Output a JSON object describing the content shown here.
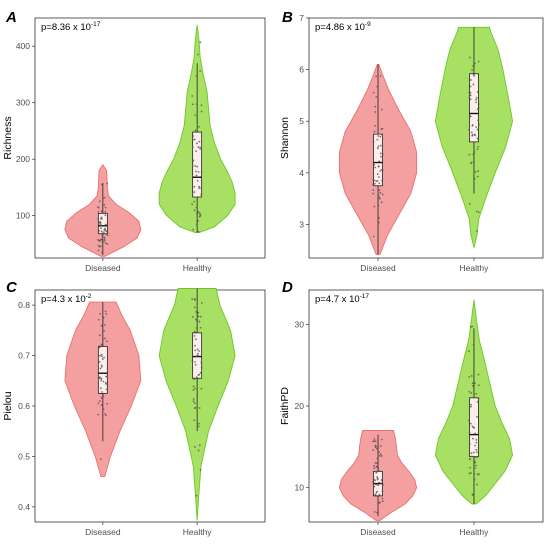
{
  "groups": [
    "Diseased",
    "Healthy"
  ],
  "colors": {
    "diseased_fill": "#f4a0a0",
    "diseased_line": "#e8706e",
    "healthy_fill": "#a8e063",
    "healthy_line": "#6cc628",
    "box_fill": "#fdeeee",
    "point": "#555555"
  },
  "chart_data": [
    {
      "letter": "A",
      "type": "violin",
      "ylabel": "Richness",
      "pvalue": {
        "base": "p=8.36 x 10",
        "exp": "-17"
      },
      "categories": [
        "Diseased",
        "Healthy"
      ],
      "ylim": [
        25,
        450
      ],
      "yticks": [
        100,
        200,
        300,
        400
      ],
      "grid": false,
      "series": [
        {
          "name": "Diseased",
          "min": 28,
          "max": 190,
          "q1": 68,
          "median": 82,
          "q3": 104,
          "whisker_low": 30,
          "whisker_high": 158,
          "density": [
            [
              28,
              0.05
            ],
            [
              45,
              0.55
            ],
            [
              60,
              0.9
            ],
            [
              75,
              1.0
            ],
            [
              90,
              0.95
            ],
            [
              105,
              0.7
            ],
            [
              120,
              0.35
            ],
            [
              135,
              0.15
            ],
            [
              150,
              0.12
            ],
            [
              165,
              0.11
            ],
            [
              180,
              0.1
            ],
            [
              190,
              0.0
            ]
          ]
        },
        {
          "name": "Healthy",
          "min": 70,
          "max": 438,
          "q1": 133,
          "median": 168,
          "q3": 248,
          "whisker_low": 70,
          "whisker_high": 370,
          "density": [
            [
              70,
              0.05
            ],
            [
              80,
              0.45
            ],
            [
              100,
              0.8
            ],
            [
              120,
              1.0
            ],
            [
              140,
              1.0
            ],
            [
              160,
              0.92
            ],
            [
              180,
              0.78
            ],
            [
              200,
              0.62
            ],
            [
              230,
              0.45
            ],
            [
              260,
              0.34
            ],
            [
              290,
              0.3
            ],
            [
              320,
              0.26
            ],
            [
              350,
              0.16
            ],
            [
              380,
              0.08
            ],
            [
              410,
              0.05
            ],
            [
              438,
              0.0
            ]
          ]
        }
      ]
    },
    {
      "letter": "B",
      "type": "violin",
      "ylabel": "Shannon",
      "pvalue": {
        "base": "p=4.86 x 10",
        "exp": "-9"
      },
      "categories": [
        "Diseased",
        "Healthy"
      ],
      "ylim": [
        2.35,
        7.0
      ],
      "yticks": [
        3,
        4,
        5,
        6,
        7
      ],
      "grid": false,
      "series": [
        {
          "name": "Diseased",
          "min": 2.42,
          "max": 6.1,
          "q1": 3.75,
          "median": 4.2,
          "q3": 4.75,
          "whisker_low": 2.42,
          "whisker_high": 6.1,
          "density": [
            [
              2.42,
              0.05
            ],
            [
              2.8,
              0.25
            ],
            [
              3.2,
              0.55
            ],
            [
              3.6,
              0.85
            ],
            [
              4.0,
              1.0
            ],
            [
              4.4,
              1.0
            ],
            [
              4.8,
              0.85
            ],
            [
              5.2,
              0.55
            ],
            [
              5.6,
              0.28
            ],
            [
              5.9,
              0.12
            ],
            [
              6.1,
              0.02
            ]
          ]
        },
        {
          "name": "Healthy",
          "min": 2.55,
          "max": 6.82,
          "q1": 4.6,
          "median": 5.15,
          "q3": 5.92,
          "whisker_low": 3.6,
          "whisker_high": 6.82,
          "density": [
            [
              2.55,
              0.0
            ],
            [
              2.8,
              0.08
            ],
            [
              3.1,
              0.12
            ],
            [
              3.5,
              0.3
            ],
            [
              4.0,
              0.55
            ],
            [
              4.5,
              0.82
            ],
            [
              5.0,
              1.0
            ],
            [
              5.5,
              0.88
            ],
            [
              6.0,
              0.75
            ],
            [
              6.4,
              0.62
            ],
            [
              6.7,
              0.45
            ],
            [
              6.82,
              0.4
            ]
          ]
        }
      ]
    },
    {
      "letter": "C",
      "type": "violin",
      "ylabel": "Pielou",
      "pvalue": {
        "base": "p=4.3 x 10",
        "exp": "-2"
      },
      "categories": [
        "Diseased",
        "Healthy"
      ],
      "ylim": [
        0.37,
        0.83
      ],
      "yticks": [
        0.4,
        0.5,
        0.6,
        0.7,
        0.8
      ],
      "grid": false,
      "series": [
        {
          "name": "Diseased",
          "min": 0.46,
          "max": 0.806,
          "q1": 0.625,
          "median": 0.665,
          "q3": 0.718,
          "whisker_low": 0.53,
          "whisker_high": 0.806,
          "density": [
            [
              0.46,
              0.05
            ],
            [
              0.5,
              0.2
            ],
            [
              0.55,
              0.45
            ],
            [
              0.6,
              0.75
            ],
            [
              0.65,
              1.0
            ],
            [
              0.7,
              0.95
            ],
            [
              0.75,
              0.72
            ],
            [
              0.78,
              0.5
            ],
            [
              0.806,
              0.35
            ]
          ]
        },
        {
          "name": "Healthy",
          "min": 0.373,
          "max": 0.833,
          "q1": 0.655,
          "median": 0.698,
          "q3": 0.745,
          "whisker_low": 0.55,
          "whisker_high": 0.833,
          "density": [
            [
              0.373,
              0.0
            ],
            [
              0.42,
              0.04
            ],
            [
              0.48,
              0.1
            ],
            [
              0.55,
              0.3
            ],
            [
              0.6,
              0.55
            ],
            [
              0.65,
              0.82
            ],
            [
              0.7,
              1.0
            ],
            [
              0.75,
              0.88
            ],
            [
              0.8,
              0.6
            ],
            [
              0.833,
              0.5
            ]
          ]
        }
      ]
    },
    {
      "letter": "D",
      "type": "violin",
      "ylabel": "FaithPD",
      "pvalue": {
        "base": "p=4.7 x 10",
        "exp": "-17"
      },
      "categories": [
        "Diseased",
        "Healthy"
      ],
      "ylim": [
        5.8,
        34.2
      ],
      "yticks": [
        10,
        20,
        30
      ],
      "grid": false,
      "series": [
        {
          "name": "Diseased",
          "min": 6.0,
          "max": 17.0,
          "q1": 9.0,
          "median": 10.5,
          "q3": 12.0,
          "whisker_low": 6.5,
          "whisker_high": 16.5,
          "density": [
            [
              6.0,
              0.05
            ],
            [
              7.0,
              0.35
            ],
            [
              8.0,
              0.7
            ],
            [
              9.0,
              0.9
            ],
            [
              10.0,
              1.0
            ],
            [
              11.0,
              0.95
            ],
            [
              12.0,
              0.8
            ],
            [
              13.0,
              0.62
            ],
            [
              14.0,
              0.5
            ],
            [
              15.0,
              0.48
            ],
            [
              16.0,
              0.45
            ],
            [
              17.0,
              0.4
            ]
          ]
        },
        {
          "name": "Healthy",
          "min": 8.0,
          "max": 33.0,
          "q1": 13.8,
          "median": 16.5,
          "q3": 21.0,
          "whisker_low": 8.0,
          "whisker_high": 29.5,
          "density": [
            [
              8.0,
              0.05
            ],
            [
              9.0,
              0.3
            ],
            [
              10.5,
              0.55
            ],
            [
              12.0,
              0.8
            ],
            [
              14.0,
              1.0
            ],
            [
              16.0,
              0.92
            ],
            [
              18.0,
              0.72
            ],
            [
              20.0,
              0.55
            ],
            [
              22.0,
              0.45
            ],
            [
              24.0,
              0.35
            ],
            [
              26.0,
              0.25
            ],
            [
              28.0,
              0.14
            ],
            [
              30.0,
              0.08
            ],
            [
              33.0,
              0.0
            ]
          ]
        }
      ]
    }
  ]
}
